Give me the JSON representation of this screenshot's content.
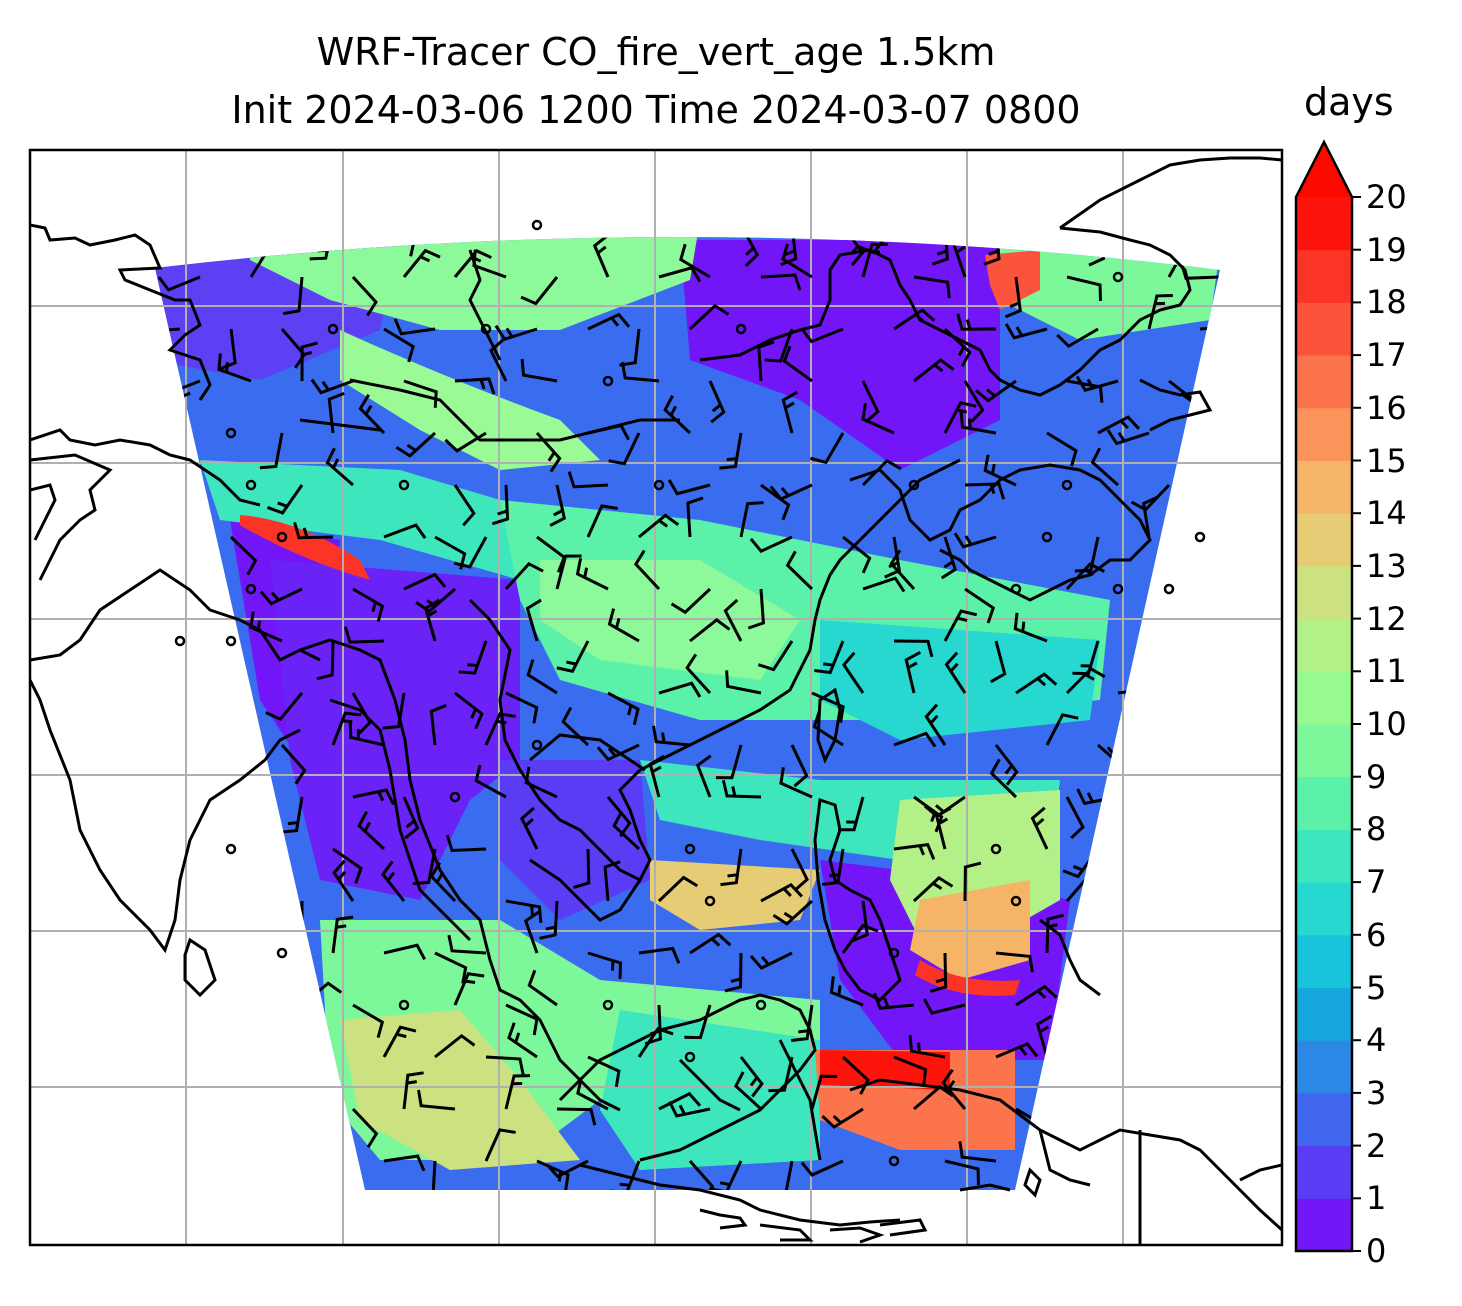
{
  "title": {
    "line1": "WRF-Tracer CO_fire_vert_age 1.5km",
    "line2": "Init 2024-03-06 1200 Time 2024-03-07 0800"
  },
  "colorbar": {
    "unit": "days",
    "min": 0,
    "max": 20,
    "extend": "max",
    "ticks": [
      "0",
      "1",
      "2",
      "3",
      "4",
      "5",
      "6",
      "7",
      "8",
      "9",
      "10",
      "11",
      "12",
      "13",
      "14",
      "15",
      "16",
      "17",
      "18",
      "19",
      "20"
    ],
    "colors": [
      "#7216f8",
      "#5a3cf5",
      "#4066ed",
      "#2c88e4",
      "#16a8dc",
      "#18c4dc",
      "#26d8d0",
      "#3ee6bd",
      "#5cf1a8",
      "#7cf89a",
      "#96fa90",
      "#b4f088",
      "#cce280",
      "#e6cc74",
      "#f6b466",
      "#fb945a",
      "#fc744c",
      "#fc543c",
      "#fc3428",
      "#fc140c"
    ],
    "over_color": "#fc0a00"
  },
  "map": {
    "gridlines": "on",
    "coastlines": "on",
    "field": "CO_fire_vert_age",
    "overlay": "wind barbs"
  }
}
